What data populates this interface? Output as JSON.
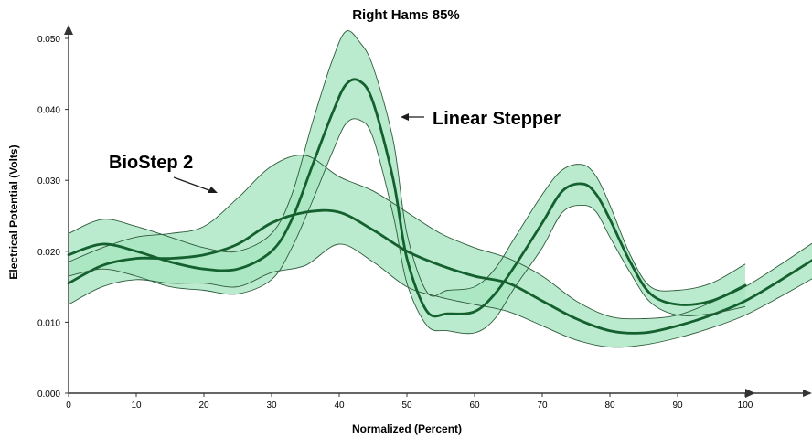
{
  "chart_data": {
    "type": "line",
    "title": "Right Hams 85%",
    "xlabel": "Normalized (Percent)",
    "ylabel": "Electrical Potential (Volts)",
    "xlim": [
      0,
      110
    ],
    "ylim": [
      0,
      0.05
    ],
    "xticks": [
      0,
      10,
      20,
      30,
      40,
      50,
      60,
      70,
      80,
      90,
      100
    ],
    "xtick_labels": [
      "0",
      "10",
      "20",
      "30",
      "40",
      "50",
      "60",
      "70",
      "80",
      "90",
      "100"
    ],
    "yticks": [
      0.0,
      0.01,
      0.02,
      0.03,
      0.04,
      0.05
    ],
    "ytick_labels": [
      "0.000",
      "0.010",
      "0.020",
      "0.030",
      "0.040",
      "0.050"
    ],
    "grid": false,
    "band_color": "#a8e6c0",
    "line_color": "#14602e",
    "series": [
      {
        "name": "BioStep 2",
        "x": [
          0,
          5,
          10,
          15,
          20,
          25,
          30,
          35,
          40,
          45,
          50,
          55,
          60,
          65,
          70,
          75,
          80,
          85,
          90,
          95,
          100,
          105,
          110
        ],
        "mean": [
          0.0155,
          0.018,
          0.019,
          0.019,
          0.0195,
          0.021,
          0.024,
          0.0255,
          0.0255,
          0.023,
          0.02,
          0.018,
          0.0165,
          0.0155,
          0.013,
          0.0105,
          0.0088,
          0.0085,
          0.0095,
          0.011,
          0.013,
          0.0158,
          0.0188
        ],
        "upper": [
          0.0185,
          0.0205,
          0.022,
          0.0225,
          0.0235,
          0.0275,
          0.032,
          0.0335,
          0.0305,
          0.0285,
          0.0255,
          0.0225,
          0.0205,
          0.019,
          0.0165,
          0.013,
          0.0108,
          0.0105,
          0.011,
          0.0128,
          0.015,
          0.018,
          0.0212
        ],
        "lower": [
          0.0125,
          0.015,
          0.016,
          0.0155,
          0.0155,
          0.015,
          0.017,
          0.018,
          0.021,
          0.0185,
          0.015,
          0.0135,
          0.0125,
          0.0115,
          0.0095,
          0.0075,
          0.0065,
          0.0068,
          0.0078,
          0.0092,
          0.011,
          0.0135,
          0.0162
        ]
      },
      {
        "name": "Linear Stepper",
        "x": [
          0,
          5,
          10,
          15,
          20,
          25,
          30,
          33,
          36,
          39,
          41,
          43,
          45,
          48,
          50,
          53,
          56,
          60,
          63,
          66,
          70,
          73,
          76,
          78,
          80,
          83,
          86,
          90,
          95,
          100
        ],
        "mean": [
          0.0195,
          0.021,
          0.02,
          0.0185,
          0.0175,
          0.0175,
          0.02,
          0.0245,
          0.032,
          0.0395,
          0.0435,
          0.044,
          0.041,
          0.03,
          0.019,
          0.0115,
          0.0112,
          0.0115,
          0.014,
          0.018,
          0.024,
          0.0285,
          0.0295,
          0.028,
          0.0245,
          0.0185,
          0.014,
          0.0125,
          0.013,
          0.0152
        ],
        "upper": [
          0.0225,
          0.0245,
          0.0235,
          0.022,
          0.0205,
          0.02,
          0.0225,
          0.028,
          0.038,
          0.047,
          0.051,
          0.0495,
          0.046,
          0.0355,
          0.0225,
          0.0142,
          0.0145,
          0.015,
          0.0175,
          0.022,
          0.028,
          0.0315,
          0.0322,
          0.0305,
          0.0265,
          0.0195,
          0.015,
          0.0145,
          0.0155,
          0.0182
        ],
        "lower": [
          0.0165,
          0.0175,
          0.0165,
          0.015,
          0.0145,
          0.014,
          0.016,
          0.0205,
          0.027,
          0.034,
          0.038,
          0.0385,
          0.036,
          0.025,
          0.0155,
          0.0095,
          0.0088,
          0.0085,
          0.0105,
          0.015,
          0.0205,
          0.0255,
          0.0265,
          0.0255,
          0.022,
          0.017,
          0.0128,
          0.011,
          0.0112,
          0.0122
        ]
      }
    ],
    "annotations": [
      {
        "text": "BioStep 2",
        "target_series": "BioStep 2"
      },
      {
        "text": "Linear Stepper",
        "target_series": "Linear Stepper"
      }
    ]
  }
}
